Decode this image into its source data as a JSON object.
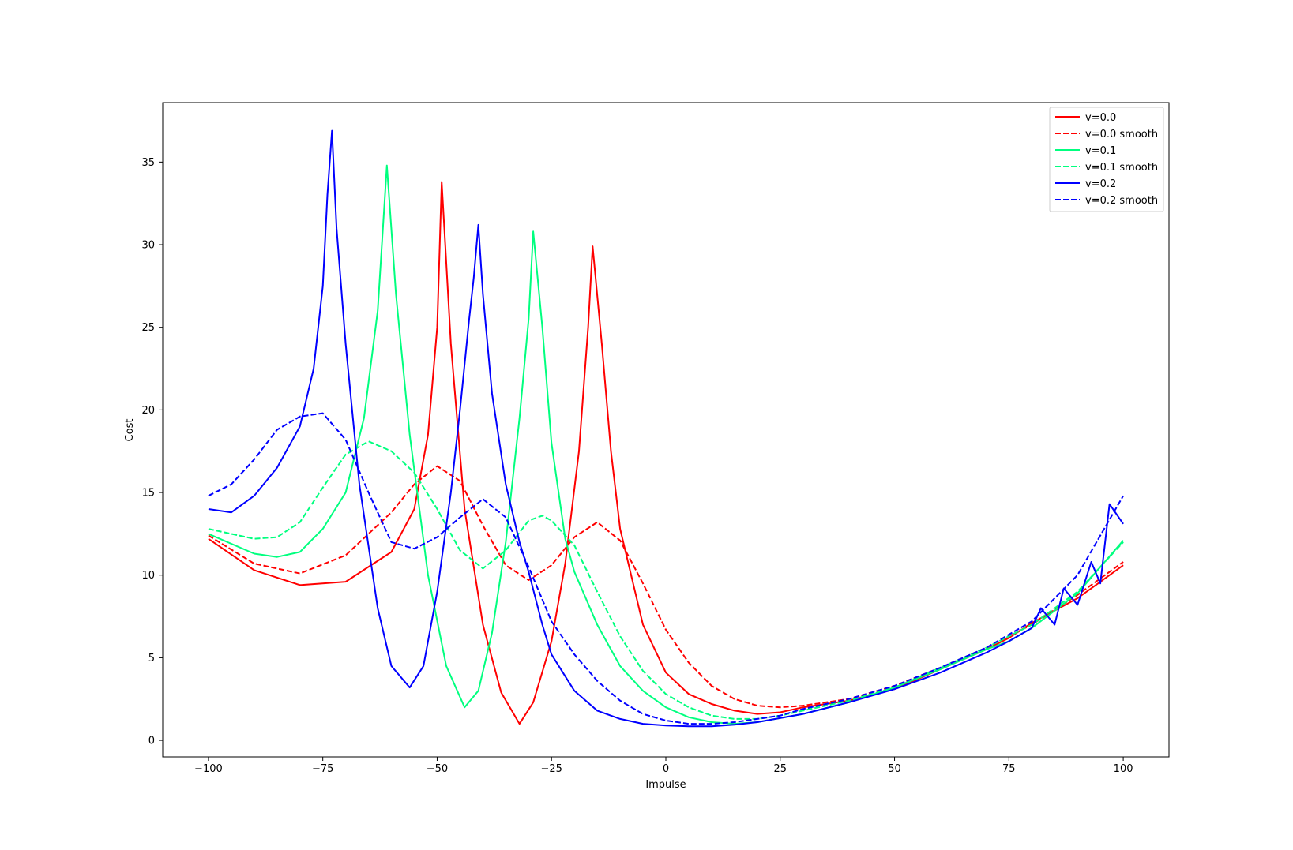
{
  "chart_data": {
    "type": "line",
    "title": "",
    "xlabel": "Impulse",
    "ylabel": "Cost",
    "xlim": [
      -110,
      110
    ],
    "ylim": [
      -1,
      38.6
    ],
    "x_ticks": [
      -100,
      -75,
      -50,
      -25,
      0,
      25,
      50,
      75,
      100
    ],
    "x_tick_labels": [
      "−100",
      "−75",
      "−50",
      "−25",
      "0",
      "25",
      "50",
      "75",
      "100"
    ],
    "y_ticks": [
      0,
      5,
      10,
      15,
      20,
      25,
      30,
      35
    ],
    "y_tick_labels": [
      "0",
      "5",
      "10",
      "15",
      "20",
      "25",
      "30",
      "35"
    ],
    "grid": false,
    "legend_position": "top-right",
    "colors": {
      "red": "#ff0000",
      "green": "#00ff7f",
      "blue": "#0000ff"
    },
    "series": [
      {
        "name": "v=0.0",
        "color": "#ff0000",
        "style": "solid",
        "x": [
          -100,
          -90,
          -80,
          -70,
          -60,
          -55,
          -52,
          -50,
          -49,
          -47,
          -44,
          -40,
          -36,
          -32,
          -29,
          -25,
          -22,
          -19,
          -17,
          -16,
          -14,
          -12,
          -10,
          -5,
          0,
          5,
          10,
          15,
          20,
          25,
          30,
          40,
          50,
          60,
          70,
          75,
          80,
          90,
          100
        ],
        "y": [
          12.2,
          10.3,
          9.4,
          9.6,
          11.4,
          14.0,
          18.5,
          25.0,
          33.8,
          24.0,
          14.0,
          7.0,
          2.9,
          1.0,
          2.3,
          6.0,
          10.7,
          17.5,
          25.0,
          29.9,
          24.0,
          17.5,
          12.8,
          7.0,
          4.1,
          2.8,
          2.2,
          1.8,
          1.6,
          1.7,
          2.0,
          2.4,
          3.1,
          4.3,
          5.5,
          6.2,
          7.1,
          8.6,
          10.6
        ]
      },
      {
        "name": "v=0.0 smooth",
        "color": "#ff0000",
        "style": "dashed",
        "x": [
          -100,
          -90,
          -80,
          -70,
          -60,
          -55,
          -50,
          -45,
          -40,
          -35,
          -30,
          -25,
          -20,
          -15,
          -10,
          -5,
          0,
          5,
          10,
          15,
          20,
          25,
          30,
          40,
          50,
          60,
          70,
          80,
          90,
          100
        ],
        "y": [
          12.4,
          10.7,
          10.1,
          11.2,
          13.8,
          15.5,
          16.6,
          15.7,
          13.0,
          10.6,
          9.7,
          10.6,
          12.3,
          13.2,
          12.1,
          9.5,
          6.7,
          4.7,
          3.3,
          2.5,
          2.1,
          2.0,
          2.1,
          2.5,
          3.3,
          4.4,
          5.6,
          7.0,
          8.8,
          10.8
        ]
      },
      {
        "name": "v=0.1",
        "color": "#00ff7f",
        "style": "solid",
        "x": [
          -100,
          -90,
          -85,
          -80,
          -75,
          -70,
          -66,
          -63,
          -61,
          -59,
          -56,
          -52,
          -48,
          -44,
          -41,
          -38,
          -35,
          -32,
          -30,
          -29,
          -27,
          -25,
          -22,
          -20,
          -15,
          -10,
          -5,
          0,
          5,
          10,
          15,
          20,
          30,
          40,
          50,
          60,
          70,
          75,
          80,
          90,
          100
        ],
        "y": [
          12.5,
          11.3,
          11.1,
          11.4,
          12.8,
          15.0,
          19.5,
          26.0,
          34.8,
          27.0,
          18.5,
          10.0,
          4.5,
          2.0,
          3.0,
          6.5,
          12.0,
          19.5,
          25.5,
          30.8,
          25.0,
          18.0,
          12.2,
          10.2,
          7.0,
          4.5,
          3.0,
          2.0,
          1.4,
          1.1,
          1.0,
          1.1,
          1.6,
          2.3,
          3.2,
          4.3,
          5.5,
          6.0,
          6.8,
          8.9,
          12.1
        ]
      },
      {
        "name": "v=0.1 smooth",
        "color": "#00ff7f",
        "style": "dashed",
        "x": [
          -100,
          -90,
          -85,
          -80,
          -75,
          -70,
          -65,
          -60,
          -55,
          -50,
          -45,
          -40,
          -35,
          -30,
          -27,
          -25,
          -20,
          -15,
          -10,
          -5,
          0,
          5,
          10,
          15,
          20,
          25,
          30,
          40,
          50,
          60,
          70,
          80,
          90,
          100
        ],
        "y": [
          12.8,
          12.2,
          12.3,
          13.2,
          15.3,
          17.3,
          18.1,
          17.5,
          16.2,
          14.0,
          11.5,
          10.4,
          11.5,
          13.3,
          13.6,
          13.3,
          11.8,
          9.0,
          6.3,
          4.2,
          2.8,
          2.0,
          1.5,
          1.3,
          1.3,
          1.5,
          1.8,
          2.4,
          3.2,
          4.4,
          5.6,
          7.0,
          9.0,
          12.0
        ]
      },
      {
        "name": "v=0.2",
        "color": "#0000ff",
        "style": "solid",
        "x": [
          -100,
          -95,
          -90,
          -85,
          -80,
          -77,
          -75,
          -74,
          -73,
          -72,
          -70,
          -67,
          -63,
          -60,
          -56,
          -53,
          -50,
          -47,
          -45,
          -43,
          -42,
          -41,
          -40,
          -38,
          -35,
          -32,
          -30,
          -27,
          -25,
          -20,
          -15,
          -10,
          -5,
          0,
          5,
          10,
          15,
          20,
          30,
          40,
          50,
          60,
          70,
          75,
          80,
          82,
          85,
          87,
          90,
          93,
          95,
          97,
          100
        ],
        "y": [
          14.0,
          13.8,
          14.8,
          16.5,
          19.0,
          22.5,
          27.5,
          33.0,
          36.9,
          31.0,
          24.0,
          15.5,
          8.0,
          4.5,
          3.2,
          4.5,
          9.0,
          15.0,
          20.0,
          25.5,
          28.0,
          31.2,
          27.0,
          21.0,
          15.5,
          12.0,
          10.2,
          7.0,
          5.2,
          3.0,
          1.8,
          1.3,
          1.0,
          0.9,
          0.85,
          0.85,
          0.95,
          1.1,
          1.6,
          2.3,
          3.1,
          4.1,
          5.3,
          6.0,
          6.8,
          8.0,
          7.0,
          9.2,
          8.2,
          10.8,
          9.5,
          14.3,
          13.1
        ]
      },
      {
        "name": "v=0.2 smooth",
        "color": "#0000ff",
        "style": "dashed",
        "x": [
          -100,
          -95,
          -90,
          -85,
          -80,
          -75,
          -70,
          -65,
          -60,
          -55,
          -50,
          -45,
          -40,
          -35,
          -30,
          -25,
          -20,
          -15,
          -10,
          -5,
          0,
          5,
          10,
          15,
          20,
          25,
          30,
          40,
          50,
          60,
          70,
          80,
          90,
          100
        ],
        "y": [
          14.8,
          15.5,
          17.0,
          18.8,
          19.6,
          19.8,
          18.2,
          15.0,
          12.0,
          11.6,
          12.3,
          13.5,
          14.6,
          13.5,
          10.5,
          7.2,
          5.2,
          3.6,
          2.4,
          1.6,
          1.2,
          1.0,
          1.0,
          1.1,
          1.3,
          1.5,
          1.9,
          2.5,
          3.3,
          4.4,
          5.6,
          7.2,
          10.0,
          14.8
        ]
      }
    ]
  }
}
